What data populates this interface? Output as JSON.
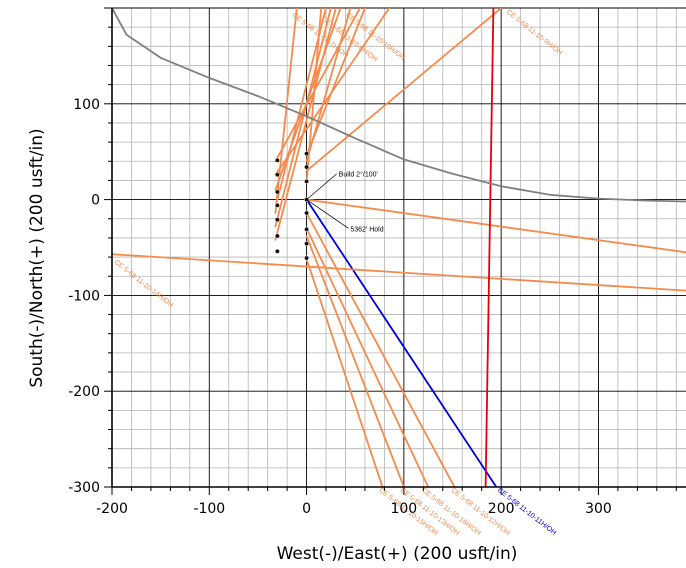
{
  "chart_data": {
    "type": "line",
    "xlabel": "West(-)/East(+) (200 usft/in)",
    "ylabel": "South(-)/North(+) (200 usft/in)",
    "xlim": [
      -200,
      390
    ],
    "ylim": [
      -300,
      200
    ],
    "x_ticks": [
      -200,
      -100,
      0,
      100,
      200,
      300
    ],
    "y_ticks": [
      -300,
      -200,
      -100,
      0,
      100
    ],
    "x_tick_labels": [
      "-200",
      "-100",
      "0",
      "100",
      "200",
      "300"
    ],
    "y_tick_labels": [
      "-300",
      "-200",
      "-100",
      "0",
      "100"
    ],
    "grid": true,
    "colors": {
      "offset_wells": "#f58a4b",
      "subject_well": "#0000dd",
      "red_line": "#e3000f",
      "gray_line": "#808080",
      "grid_minor": "#b4b4b4",
      "grid_major": "#000000"
    },
    "annotations": [
      {
        "text": "Build 2°/100'",
        "x": 33,
        "y": 27,
        "arrow_to": [
          0,
          0
        ]
      },
      {
        "text": "5362' Hold",
        "x": 45,
        "y": -30,
        "arrow_to": [
          0,
          0
        ]
      }
    ],
    "series": [
      {
        "name": "CE 5-68 11-10-11H/OH",
        "color_key": "subject_well",
        "x": [
          0,
          195
        ],
        "y": [
          0,
          -300
        ]
      },
      {
        "name": "CE 5-68 11-10-9H/OH",
        "color_key": "offset_wells",
        "x": [
          0,
          200
        ],
        "y": [
          30,
          200
        ]
      },
      {
        "name": "CE 5-68 11-10-14H/OH",
        "color_key": "offset_wells",
        "x": [
          -200,
          390
        ],
        "y": [
          -57,
          -95
        ]
      },
      {
        "name": "",
        "color_key": "offset_wells",
        "x": [
          0,
          390
        ],
        "y": [
          0,
          -55
        ]
      },
      {
        "name": "CE 5-68 11-10-13H/OH",
        "color_key": "offset_wells",
        "x": [
          0,
          100
        ],
        "y": [
          -38,
          -300
        ]
      },
      {
        "name": "CE 5-68 11-10-12H/OH",
        "color_key": "offset_wells",
        "x": [
          0,
          152
        ],
        "y": [
          -14,
          -300
        ]
      },
      {
        "name": "CE 5-68 11-10-15H/OH",
        "color_key": "offset_wells",
        "x": [
          0,
          78
        ],
        "y": [
          -62,
          -300
        ]
      },
      {
        "name": "CE 5-68 11-10-16H/OH",
        "color_key": "offset_wells",
        "x": [
          0,
          125
        ],
        "y": [
          -30,
          -300
        ]
      },
      {
        "name": "",
        "color_key": "offset_wells",
        "x": [
          -32,
          30
        ],
        "y": [
          -42,
          200
        ]
      },
      {
        "name": "",
        "color_key": "offset_wells",
        "x": [
          -32,
          25
        ],
        "y": [
          -28,
          200
        ]
      },
      {
        "name": "",
        "color_key": "offset_wells",
        "x": [
          -32,
          -10
        ],
        "y": [
          -14,
          200
        ]
      },
      {
        "name": "",
        "color_key": "offset_wells",
        "x": [
          -30,
          20
        ],
        "y": [
          0,
          200
        ]
      },
      {
        "name": "",
        "color_key": "offset_wells",
        "x": [
          0,
          15
        ],
        "y": [
          18,
          200
        ]
      },
      {
        "name": "",
        "color_key": "offset_wells",
        "x": [
          0,
          45
        ],
        "y": [
          40,
          200
        ]
      },
      {
        "name": "",
        "color_key": "offset_wells",
        "x": [
          0,
          60
        ],
        "y": [
          46,
          200
        ]
      },
      {
        "name": "CE 5-68 11-10-10H/OH",
        "color_key": "offset_wells",
        "x": [
          -32,
          55
        ],
        "y": [
          40,
          200
        ]
      },
      {
        "name": "CE 5-68 11-10-8H/OH",
        "color_key": "offset_wells",
        "x": [
          -32,
          85
        ],
        "y": [
          26,
          200
        ]
      },
      {
        "name": "CE 5-68 11-10-7H/OH",
        "color_key": "offset_wells",
        "x": [
          -32,
          35
        ],
        "y": [
          10,
          200
        ]
      },
      {
        "name": "",
        "color_key": "red_line",
        "x": [
          184,
          192
        ],
        "y": [
          -300,
          200
        ]
      },
      {
        "name": "",
        "color_key": "gray_line",
        "x": [
          -200,
          -185,
          -150,
          -100,
          -50,
          0,
          50,
          100,
          150,
          200,
          250,
          300,
          350,
          390
        ],
        "y": [
          200,
          172,
          148,
          127,
          108,
          87,
          64,
          42,
          27,
          14,
          5,
          1,
          -1,
          -2
        ]
      }
    ],
    "well_labels": [
      {
        "text": "CE 5-68 11-10-9H/OH",
        "x": 205,
        "y": 195,
        "angle": 38,
        "color_key": "offset_wells"
      },
      {
        "text": "CE 5-68 11-10-14H/OH",
        "x": -198,
        "y": -66,
        "angle": 38,
        "color_key": "offset_wells"
      },
      {
        "text": "CE 5-68 11-10-11H/OH",
        "x": 196,
        "y": -304,
        "angle": 38,
        "color_key": "subject_well"
      },
      {
        "text": "CE 5-68 11-10-13H/OH",
        "x": 96,
        "y": -304,
        "angle": 38,
        "color_key": "offset_wells"
      },
      {
        "text": "CE 5-68 11-10-12H/OH",
        "x": 148,
        "y": -304,
        "angle": 38,
        "color_key": "offset_wells"
      },
      {
        "text": "CE 5-68 11-10-15H/OH",
        "x": 74,
        "y": -304,
        "angle": 38,
        "color_key": "offset_wells"
      },
      {
        "text": "CE 5-68 11-10-16H/OH",
        "x": 118,
        "y": -304,
        "angle": 38,
        "color_key": "offset_wells"
      },
      {
        "text": "CE 5-68 11-10-10H/OH",
        "x": 40,
        "y": 192,
        "angle": 38,
        "color_key": "offset_wells"
      },
      {
        "text": "CE 5-68 11-10-8H/OH",
        "x": 15,
        "y": 188,
        "angle": 38,
        "color_key": "offset_wells"
      },
      {
        "text": "CE 5-68 11-10-7H/OH",
        "x": -15,
        "y": 192,
        "angle": 38,
        "color_key": "offset_wells"
      }
    ],
    "wellhead_points": [
      {
        "x": -30,
        "y": 41
      },
      {
        "x": -30,
        "y": 26
      },
      {
        "x": -30,
        "y": 8
      },
      {
        "x": -30,
        "y": -6
      },
      {
        "x": -30,
        "y": -21
      },
      {
        "x": -30,
        "y": -38
      },
      {
        "x": -30,
        "y": -54
      },
      {
        "x": 0,
        "y": 48
      },
      {
        "x": 0,
        "y": 34
      },
      {
        "x": 0,
        "y": 19
      },
      {
        "x": 0,
        "y": 0
      },
      {
        "x": 0,
        "y": -14
      },
      {
        "x": 0,
        "y": -31
      },
      {
        "x": 0,
        "y": -46
      },
      {
        "x": 0,
        "y": -61
      }
    ]
  }
}
